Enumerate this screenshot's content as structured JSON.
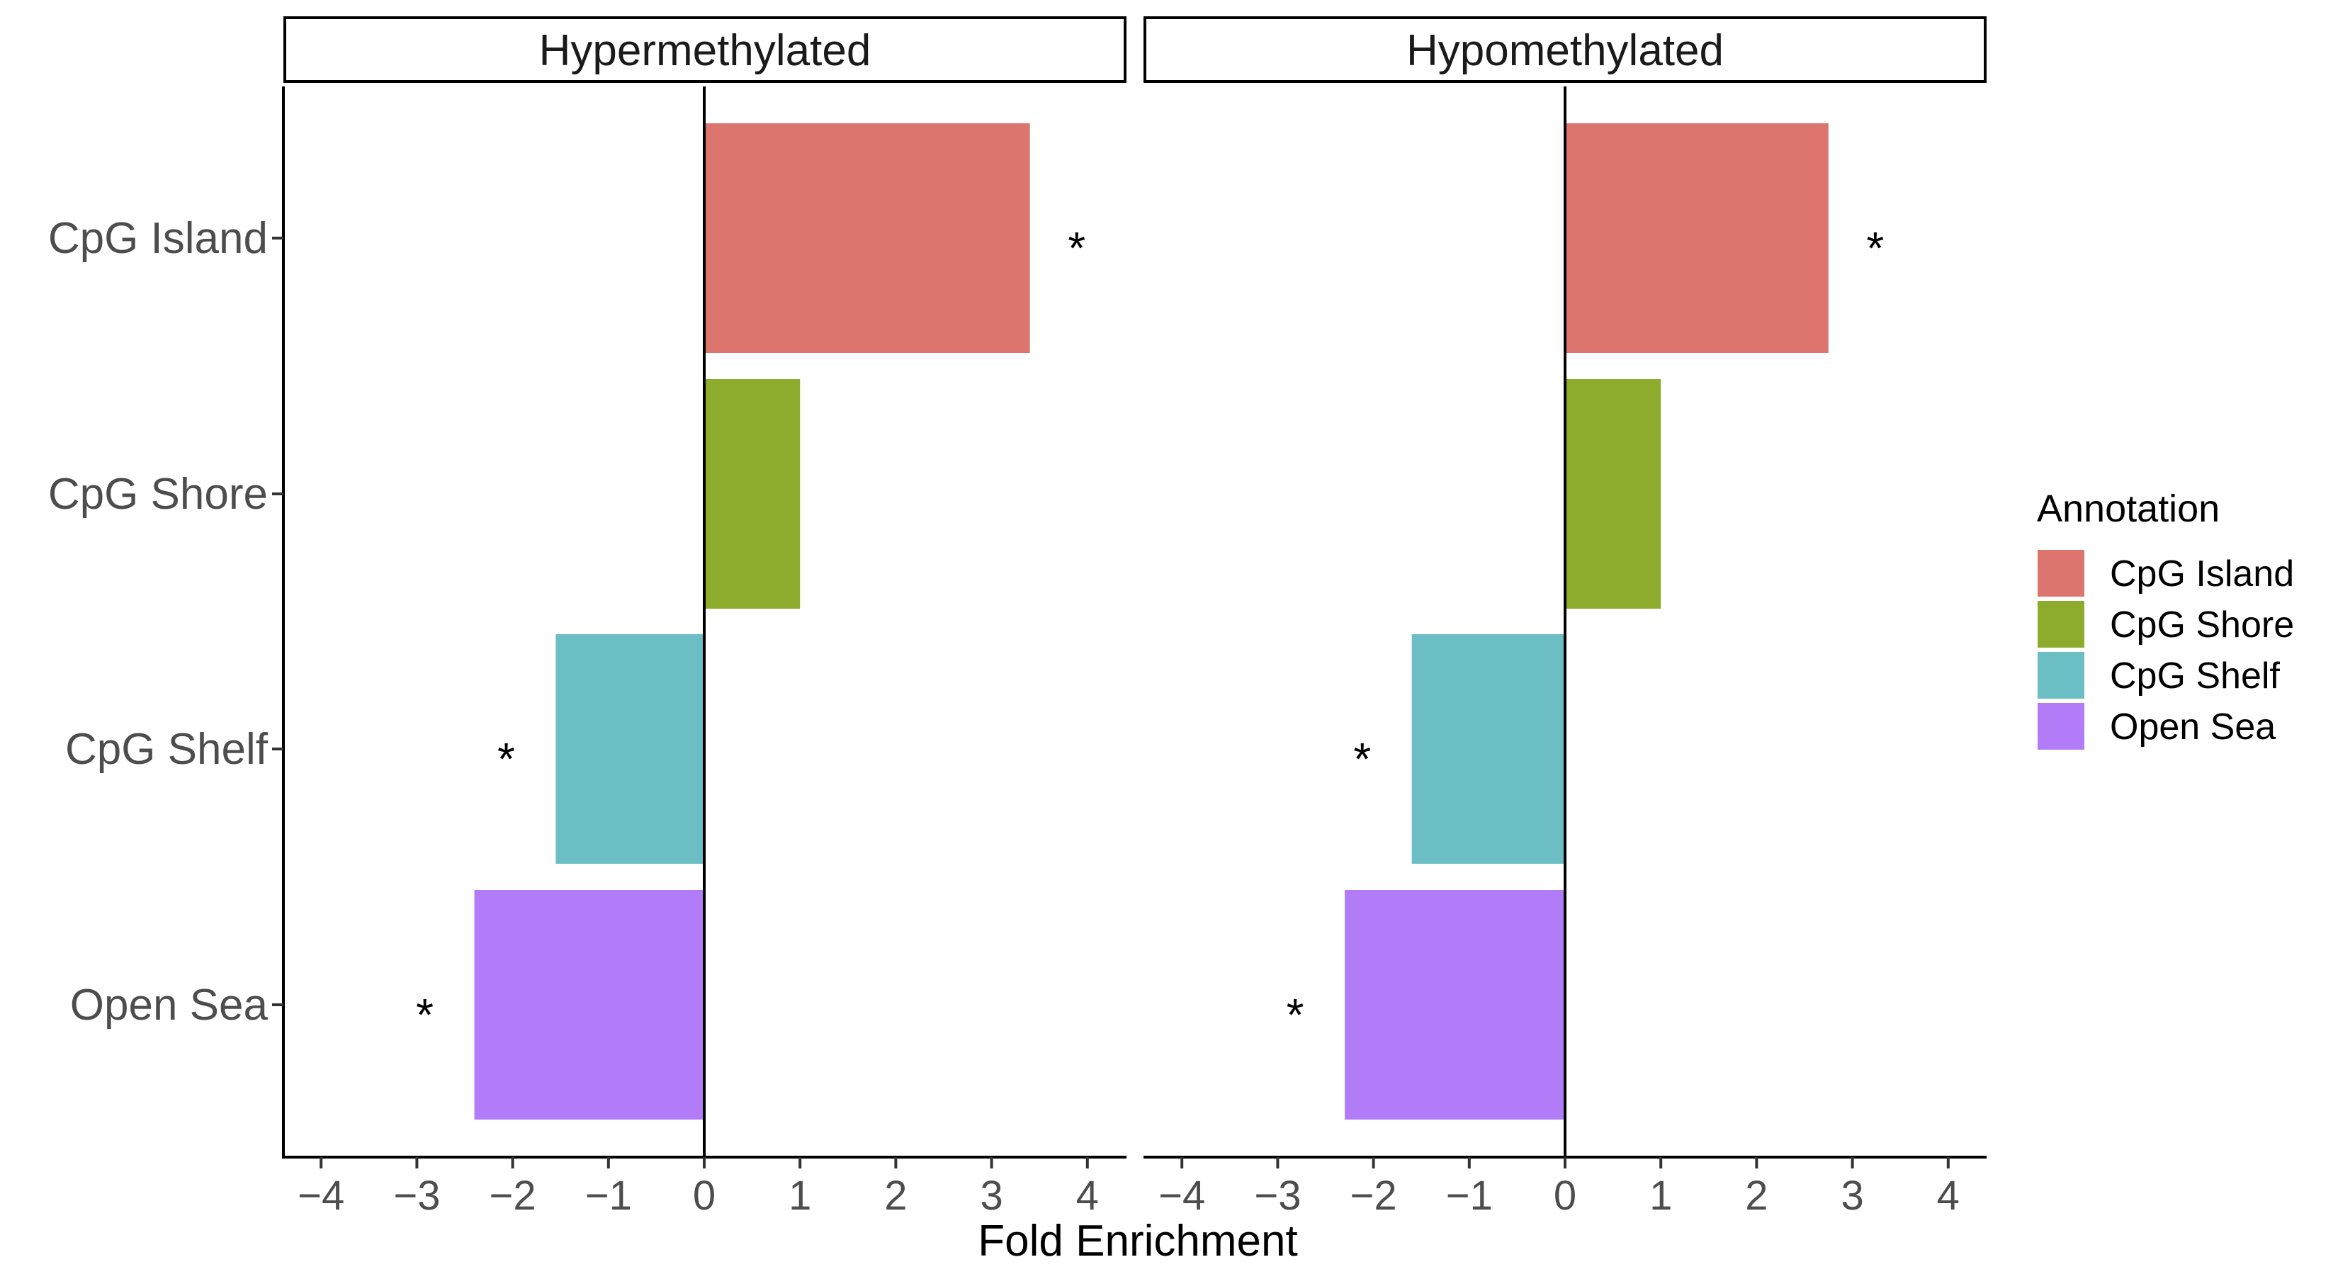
{
  "chart_data": {
    "type": "bar",
    "orientation": "horizontal",
    "facet_label_hypermethylated": "Hypermethylated",
    "facet_label_hypomethylated": "Hypomethylated",
    "categories": [
      "CpG Island",
      "CpG Shore",
      "CpG Shelf",
      "Open Sea"
    ],
    "panels": [
      {
        "name": "Hypermethylated",
        "values": [
          3.4,
          1.0,
          -1.55,
          -2.4
        ],
        "significant": [
          true,
          false,
          true,
          true
        ]
      },
      {
        "name": "Hypomethylated",
        "values": [
          2.75,
          1.0,
          -1.6,
          -2.3
        ],
        "significant": [
          true,
          false,
          true,
          true
        ]
      }
    ],
    "significance_marker": "*",
    "xlabel": "Fold Enrichment",
    "ylabel": "",
    "xlim": [
      -4.4,
      4.4
    ],
    "xticks": [
      -4,
      -3,
      -2,
      -1,
      0,
      1,
      2,
      3,
      4
    ],
    "xtick_labels": [
      "−4",
      "−3",
      "−2",
      "−1",
      "0",
      "1",
      "2",
      "3",
      "4"
    ],
    "legend": {
      "title": "Annotation",
      "placement": "right",
      "items": [
        {
          "label": "CpG Island",
          "color": "#DC756E"
        },
        {
          "label": "CpG Shore",
          "color": "#8DAC2E"
        },
        {
          "label": "CpG Shelf",
          "color": "#6BBFC4"
        },
        {
          "label": "Open Sea",
          "color": "#B27CF8"
        }
      ]
    },
    "grid": false
  }
}
